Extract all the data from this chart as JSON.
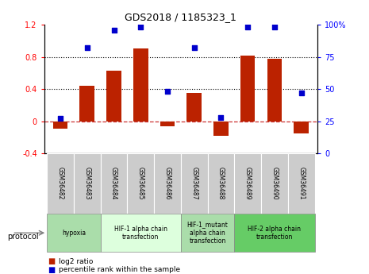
{
  "title": "GDS2018 / 1185323_1",
  "samples": [
    "GSM36482",
    "GSM36483",
    "GSM36484",
    "GSM36485",
    "GSM36486",
    "GSM36487",
    "GSM36488",
    "GSM36489",
    "GSM36490",
    "GSM36491"
  ],
  "log2_ratio": [
    -0.09,
    0.44,
    0.63,
    0.9,
    -0.06,
    0.35,
    -0.18,
    0.82,
    0.78,
    -0.15
  ],
  "percentile_rank": [
    27,
    82,
    96,
    98,
    48,
    82,
    28,
    98,
    98,
    47
  ],
  "bar_color": "#bb2200",
  "dot_color": "#0000cc",
  "ylim_left": [
    -0.4,
    1.2
  ],
  "ylim_right": [
    0,
    100
  ],
  "yticks_left": [
    -0.4,
    0.0,
    0.4,
    0.8,
    1.2
  ],
  "yticks_right": [
    0,
    25,
    50,
    75,
    100
  ],
  "hline_0_color": "#cc3333",
  "hline_0_style": "--",
  "hline_grid_color": "#000000",
  "hline_grid_style": ":",
  "protocols": [
    {
      "label": "hypoxia",
      "start": 0,
      "end": 2,
      "color": "#aaddaa"
    },
    {
      "label": "HIF-1 alpha chain\ntransfection",
      "start": 2,
      "end": 5,
      "color": "#ddffdd"
    },
    {
      "label": "HIF-1_mutant\nalpha chain\ntransfection",
      "start": 5,
      "end": 7,
      "color": "#aaddaa"
    },
    {
      "label": "HIF-2 alpha chain\ntransfection",
      "start": 7,
      "end": 10,
      "color": "#66cc66"
    }
  ],
  "sample_box_color": "#cccccc",
  "legend_log2_color": "#bb2200",
  "legend_pct_color": "#0000cc",
  "background_color": "#ffffff"
}
